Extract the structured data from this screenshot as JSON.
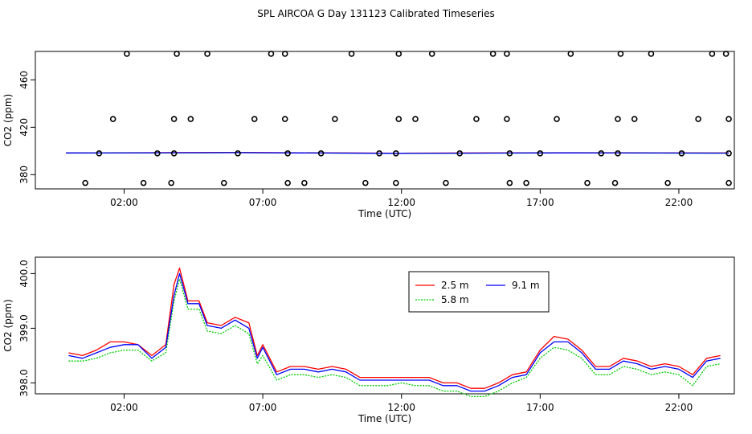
{
  "title": "SPL AIRCOA G  Day 131123  Calibrated Timeseries",
  "chart_data": [
    {
      "type": "scatter",
      "panel": "top",
      "xlabel": "Time (UTC)",
      "ylabel": "CO2 (ppm)",
      "xlim": [
        -1.2,
        24.0
      ],
      "ylim": [
        368,
        484
      ],
      "x_ticks": [
        2,
        7,
        12,
        17,
        22
      ],
      "x_tick_labels": [
        "02:00",
        "07:00",
        "12:00",
        "17:00",
        "22:00"
      ],
      "y_ticks": [
        380,
        420,
        460
      ],
      "y_tick_labels": [
        "380",
        "420",
        "460"
      ],
      "grid": false,
      "flag_points": [
        {
          "x": 0.6,
          "y": 373
        },
        {
          "x": 1.1,
          "y": 398
        },
        {
          "x": 1.6,
          "y": 427
        },
        {
          "x": 2.1,
          "y": 482
        },
        {
          "x": 2.7,
          "y": 373
        },
        {
          "x": 3.2,
          "y": 398
        },
        {
          "x": 3.7,
          "y": 373
        },
        {
          "x": 3.8,
          "y": 398
        },
        {
          "x": 3.8,
          "y": 427
        },
        {
          "x": 3.9,
          "y": 482
        },
        {
          "x": 4.4,
          "y": 427
        },
        {
          "x": 5.0,
          "y": 482
        },
        {
          "x": 5.6,
          "y": 373
        },
        {
          "x": 6.1,
          "y": 398
        },
        {
          "x": 6.7,
          "y": 427
        },
        {
          "x": 7.3,
          "y": 482
        },
        {
          "x": 7.8,
          "y": 482
        },
        {
          "x": 7.8,
          "y": 427
        },
        {
          "x": 7.9,
          "y": 398
        },
        {
          "x": 7.9,
          "y": 373
        },
        {
          "x": 8.5,
          "y": 373
        },
        {
          "x": 9.1,
          "y": 398
        },
        {
          "x": 9.6,
          "y": 427
        },
        {
          "x": 10.2,
          "y": 482
        },
        {
          "x": 10.7,
          "y": 373
        },
        {
          "x": 11.2,
          "y": 398
        },
        {
          "x": 11.8,
          "y": 373
        },
        {
          "x": 11.8,
          "y": 398
        },
        {
          "x": 11.9,
          "y": 427
        },
        {
          "x": 11.9,
          "y": 482
        },
        {
          "x": 12.5,
          "y": 427
        },
        {
          "x": 13.1,
          "y": 482
        },
        {
          "x": 13.6,
          "y": 373
        },
        {
          "x": 14.1,
          "y": 398
        },
        {
          "x": 14.7,
          "y": 427
        },
        {
          "x": 15.3,
          "y": 482
        },
        {
          "x": 15.8,
          "y": 482
        },
        {
          "x": 15.8,
          "y": 427
        },
        {
          "x": 15.9,
          "y": 398
        },
        {
          "x": 15.9,
          "y": 373
        },
        {
          "x": 16.5,
          "y": 373
        },
        {
          "x": 17.0,
          "y": 398
        },
        {
          "x": 17.6,
          "y": 427
        },
        {
          "x": 18.1,
          "y": 482
        },
        {
          "x": 18.7,
          "y": 373
        },
        {
          "x": 19.2,
          "y": 398
        },
        {
          "x": 19.7,
          "y": 373
        },
        {
          "x": 19.8,
          "y": 398
        },
        {
          "x": 19.8,
          "y": 427
        },
        {
          "x": 19.9,
          "y": 482
        },
        {
          "x": 20.4,
          "y": 427
        },
        {
          "x": 21.0,
          "y": 482
        },
        {
          "x": 21.6,
          "y": 373
        },
        {
          "x": 22.1,
          "y": 398
        },
        {
          "x": 22.7,
          "y": 427
        },
        {
          "x": 23.2,
          "y": 482
        },
        {
          "x": 23.7,
          "y": 482
        },
        {
          "x": 23.8,
          "y": 427
        },
        {
          "x": 23.8,
          "y": 398
        },
        {
          "x": 23.8,
          "y": 373
        }
      ],
      "series": [
        {
          "color": "#ff0000",
          "x": [
            -0.1,
            6,
            12,
            18,
            23.8
          ],
          "values": [
            398.4,
            398.7,
            398.1,
            398.5,
            398.3
          ]
        },
        {
          "color": "#00cc00",
          "x": [
            -0.1,
            6,
            12,
            18,
            23.8
          ],
          "values": [
            398.2,
            398.5,
            397.9,
            398.3,
            398.1
          ]
        },
        {
          "color": "#0000ff",
          "x": [
            -0.1,
            6,
            12,
            18,
            23.8
          ],
          "values": [
            398.3,
            398.6,
            398.0,
            398.4,
            398.2
          ]
        }
      ]
    },
    {
      "type": "line",
      "panel": "bottom",
      "xlabel": "Time (UTC)",
      "ylabel": "CO2 (ppm)",
      "xlim": [
        -1.2,
        24.0
      ],
      "ylim": [
        397.8,
        400.3
      ],
      "x_ticks": [
        2,
        7,
        12,
        17,
        22
      ],
      "x_tick_labels": [
        "02:00",
        "07:00",
        "12:00",
        "17:00",
        "22:00"
      ],
      "y_ticks": [
        398.0,
        399.0,
        400.0
      ],
      "y_tick_labels": [
        "398.0",
        "399.0",
        "400.0"
      ],
      "grid": false,
      "legend_placement": "top-right",
      "legend": [
        {
          "label": "2.5 m",
          "color": "#ff0000"
        },
        {
          "label": "9.1 m",
          "color": "#0000ff"
        },
        {
          "label": "5.8 m",
          "color": "#00cc00"
        }
      ],
      "series": [
        {
          "name": "2.5 m",
          "color": "#ff0000",
          "style": "solid",
          "x": [
            0.0,
            0.5,
            1.0,
            1.5,
            2.0,
            2.5,
            3.0,
            3.5,
            3.8,
            4.0,
            4.3,
            4.7,
            5.0,
            5.5,
            6.0,
            6.5,
            6.8,
            7.0,
            7.5,
            8.0,
            8.5,
            9.0,
            9.5,
            10.0,
            10.5,
            11.0,
            11.5,
            12.0,
            12.5,
            13.0,
            13.5,
            14.0,
            14.5,
            15.0,
            15.5,
            16.0,
            16.5,
            17.0,
            17.5,
            18.0,
            18.5,
            19.0,
            19.5,
            20.0,
            20.5,
            21.0,
            21.5,
            22.0,
            22.5,
            23.0,
            23.5
          ],
          "values": [
            398.55,
            398.5,
            398.6,
            398.75,
            398.75,
            398.7,
            398.5,
            398.7,
            399.8,
            400.1,
            399.5,
            399.5,
            399.1,
            399.05,
            399.2,
            399.1,
            398.5,
            398.7,
            398.2,
            398.3,
            398.3,
            398.25,
            398.3,
            398.25,
            398.1,
            398.1,
            398.1,
            398.1,
            398.1,
            398.1,
            398.0,
            398.0,
            397.9,
            397.9,
            398.0,
            398.15,
            398.2,
            398.6,
            398.85,
            398.8,
            398.6,
            398.3,
            398.3,
            398.45,
            398.4,
            398.3,
            398.35,
            398.3,
            398.15,
            398.45,
            398.5
          ]
        },
        {
          "name": "5.8 m",
          "color": "#00cc00",
          "style": "dotted",
          "x": [
            0.0,
            0.5,
            1.0,
            1.5,
            2.0,
            2.5,
            3.0,
            3.5,
            3.8,
            4.0,
            4.3,
            4.7,
            5.0,
            5.5,
            6.0,
            6.5,
            6.8,
            7.0,
            7.5,
            8.0,
            8.5,
            9.0,
            9.5,
            10.0,
            10.5,
            11.0,
            11.5,
            12.0,
            12.5,
            13.0,
            13.5,
            14.0,
            14.5,
            15.0,
            15.5,
            16.0,
            16.5,
            17.0,
            17.5,
            18.0,
            18.5,
            19.0,
            19.5,
            20.0,
            20.5,
            21.0,
            21.5,
            22.0,
            22.5,
            23.0,
            23.5
          ],
          "values": [
            398.4,
            398.4,
            398.45,
            398.55,
            398.6,
            398.6,
            398.4,
            398.55,
            399.5,
            399.9,
            399.35,
            399.35,
            398.95,
            398.9,
            399.05,
            398.9,
            398.35,
            398.5,
            398.05,
            398.15,
            398.15,
            398.1,
            398.15,
            398.1,
            397.95,
            397.95,
            397.95,
            398.0,
            397.95,
            397.95,
            397.85,
            397.85,
            397.75,
            397.75,
            397.85,
            398.0,
            398.1,
            398.45,
            398.65,
            398.6,
            398.45,
            398.15,
            398.15,
            398.3,
            398.25,
            398.15,
            398.2,
            398.15,
            397.95,
            398.3,
            398.35
          ]
        },
        {
          "name": "9.1 m",
          "color": "#0000ff",
          "style": "solid",
          "x": [
            0.0,
            0.5,
            1.0,
            1.5,
            2.0,
            2.5,
            3.0,
            3.5,
            3.8,
            4.0,
            4.3,
            4.7,
            5.0,
            5.5,
            6.0,
            6.5,
            6.8,
            7.0,
            7.5,
            8.0,
            8.5,
            9.0,
            9.5,
            10.0,
            10.5,
            11.0,
            11.5,
            12.0,
            12.5,
            13.0,
            13.5,
            14.0,
            14.5,
            15.0,
            15.5,
            16.0,
            16.5,
            17.0,
            17.5,
            18.0,
            18.5,
            19.0,
            19.5,
            20.0,
            20.5,
            21.0,
            21.5,
            22.0,
            22.5,
            23.0,
            23.5
          ],
          "values": [
            398.5,
            398.45,
            398.55,
            398.65,
            398.7,
            398.7,
            398.45,
            398.65,
            399.6,
            400.0,
            399.45,
            399.45,
            399.05,
            399.0,
            399.15,
            399.0,
            398.45,
            398.65,
            398.15,
            398.25,
            398.25,
            398.2,
            398.25,
            398.2,
            398.05,
            398.05,
            398.05,
            398.05,
            398.05,
            398.05,
            397.95,
            397.95,
            397.85,
            397.85,
            397.95,
            398.1,
            398.15,
            398.55,
            398.75,
            398.75,
            398.55,
            398.25,
            398.25,
            398.4,
            398.35,
            398.25,
            398.3,
            398.25,
            398.1,
            398.4,
            398.45
          ]
        }
      ]
    }
  ]
}
